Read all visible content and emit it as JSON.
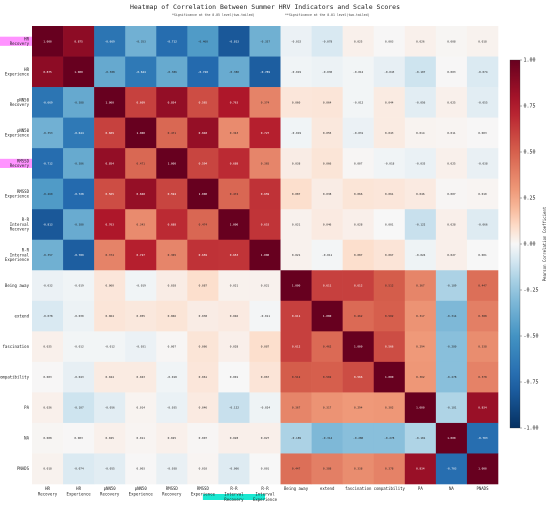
{
  "chart_data": {
    "type": "heatmap",
    "title": "Heatmap of Correlation Between Summer HRV Indicators and Scale Scores",
    "notes": [
      "*Significance at the 0.05 level(two-tailed)",
      "**Significance at the 0.01 level(two-tailed)"
    ],
    "row_labels": [
      "HR\nRecovery",
      "HR\nExperience",
      "pNN50\nRecovery",
      "pNN50\nExperience",
      "RMSSD\nRecovery",
      "RMSSD\nExperience",
      "R-R\nInterval\nRecovery",
      "R-R\nInterval\nExperience",
      "Being away",
      "extend",
      "fascination",
      "compatibility",
      "PA",
      "NA",
      "PNADS"
    ],
    "col_labels": [
      "HR\nRecovery",
      "HR\nExperience",
      "pNN50\nRecovery",
      "pNN50\nExperience",
      "RMSSD\nRecovery",
      "RMSSD\nExperience",
      "R-R\nInterval\nRecovery",
      "R-R\nInterval\nExperience",
      "Being away",
      "extend",
      "fascination",
      "compatibility",
      "PA",
      "NA",
      "PNADS"
    ],
    "values": [
      [
        1.0,
        0.875,
        -0.669,
        -0.353,
        -0.712,
        -0.46,
        -0.813,
        -0.357,
        -0.032,
        -0.078,
        0.025,
        0.003,
        0.026,
        0.008,
        0.018
      ],
      [
        0.875,
        1.0,
        -0.388,
        -0.644,
        -0.386,
        -0.728,
        -0.38,
        -0.789,
        -0.019,
        -0.03,
        -0.012,
        -0.043,
        -0.107,
        0.003,
        -0.074
      ],
      [
        -0.669,
        -0.388,
        1.0,
        0.609,
        0.854,
        0.565,
        0.763,
        0.374,
        0.06,
        0.064,
        -0.012,
        0.044,
        -0.056,
        0.025,
        -0.055
      ],
      [
        -0.353,
        -0.644,
        0.609,
        1.0,
        0.471,
        0.848,
        0.343,
        0.727,
        -0.019,
        0.055,
        -0.031,
        0.043,
        0.014,
        0.011,
        0.003
      ],
      [
        -0.712,
        -0.386,
        0.854,
        0.471,
        1.0,
        0.594,
        0.688,
        0.365,
        0.038,
        0.066,
        0.007,
        -0.018,
        -0.035,
        0.025,
        -0.038
      ],
      [
        -0.46,
        -0.728,
        0.565,
        0.848,
        0.594,
        1.0,
        0.474,
        0.659,
        0.087,
        0.038,
        0.066,
        0.061,
        0.046,
        0.007,
        0.01
      ],
      [
        -0.813,
        -0.38,
        0.763,
        0.343,
        0.688,
        0.474,
        1.0,
        0.653,
        0.021,
        0.046,
        0.028,
        0.001,
        -0.122,
        0.028,
        -0.066
      ],
      [
        -0.357,
        -0.789,
        0.374,
        0.727,
        0.365,
        0.659,
        0.653,
        1.0,
        0.021,
        -0.011,
        0.087,
        0.067,
        -0.024,
        0.027,
        0.001
      ],
      [
        -0.032,
        -0.019,
        0.06,
        -0.019,
        0.038,
        0.087,
        0.021,
        0.021,
        1.0,
        0.611,
        0.612,
        0.512,
        0.367,
        -0.189,
        0.447
      ],
      [
        -0.078,
        -0.03,
        0.064,
        0.055,
        0.066,
        0.038,
        0.046,
        -0.011,
        0.611,
        1.0,
        0.462,
        0.502,
        0.317,
        -0.314,
        0.388
      ],
      [
        0.025,
        -0.012,
        -0.012,
        -0.031,
        0.007,
        0.066,
        0.028,
        0.087,
        0.612,
        0.462,
        1.0,
        0.566,
        0.294,
        -0.28,
        0.338
      ],
      [
        0.003,
        -0.043,
        0.044,
        0.043,
        -0.018,
        0.061,
        0.001,
        0.067,
        0.512,
        0.502,
        0.566,
        1.0,
        0.302,
        -0.278,
        0.378
      ],
      [
        0.026,
        -0.107,
        -0.056,
        0.014,
        -0.035,
        0.046,
        -0.122,
        -0.024,
        0.367,
        0.317,
        0.294,
        0.302,
        1.0,
        -0.181,
        0.834
      ],
      [
        0.008,
        0.003,
        0.025,
        0.011,
        0.025,
        0.007,
        0.028,
        0.027,
        -0.189,
        -0.314,
        -0.28,
        -0.278,
        -0.181,
        1.0,
        -0.703
      ],
      [
        0.018,
        -0.074,
        -0.055,
        0.003,
        -0.038,
        0.01,
        -0.066,
        0.001,
        0.447,
        0.388,
        0.338,
        0.378,
        0.834,
        -0.703,
        1.0
      ]
    ],
    "colorbar": {
      "label": "Pearson Correlation Coefficient",
      "range": [
        -1,
        1
      ],
      "ticks": [
        "1.00",
        "0.75",
        "0.50",
        "0.25",
        "0.00",
        "-0.25",
        "-0.50",
        "-0.75",
        "-1.00"
      ]
    },
    "colors": {
      "negative": "#053061",
      "neutral": "#f7f7f7",
      "positive": "#67001f",
      "row_highlight": "#ff80ff",
      "col_highlight": "#00e5cc"
    },
    "highlighted_rows": [
      "HR\nRecovery",
      "RMSSD\nRecovery"
    ],
    "highlighted_cols": [
      "R-R\nInterval\nRecovery"
    ]
  }
}
